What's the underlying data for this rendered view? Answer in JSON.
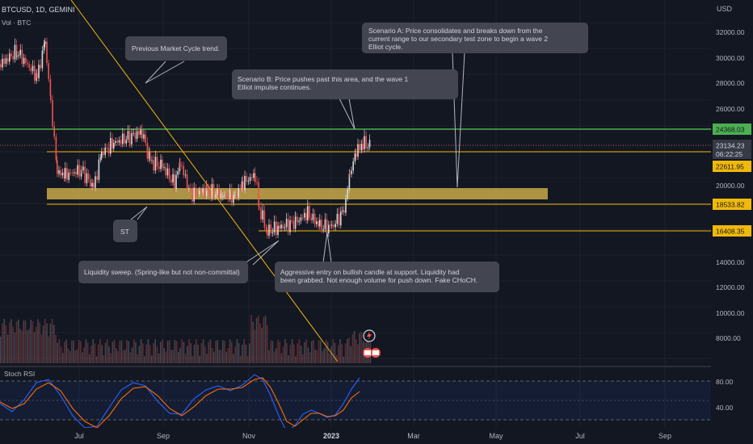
{
  "header": {
    "symbol": "BTCUSD, 1D, GEMINI",
    "volume_label": "Vol · BTC",
    "currency": "USD"
  },
  "colors": {
    "background": "#131722",
    "grid": "#1e222d",
    "candle_up": "#ef5350",
    "candle_dn": "#d9d9d9",
    "green_line": "#4caf50",
    "yellow_line": "#f0b90b",
    "zone": "#c9a94a",
    "dotted": "#c95a5a",
    "stoch_k": "#2962ff",
    "stoch_d": "#ff6d00",
    "tag_yellow": "#f0b90b",
    "tag_green": "#4caf50",
    "tag_price": "#131722",
    "callout": "#434651",
    "callout_text": "#d1d4dc"
  },
  "price_axis": {
    "ticks": [
      "32000.00",
      "30000.00",
      "28000.00",
      "26000.00",
      "20000.00",
      "14000.00",
      "12000.00",
      "10000.00",
      "8000.00"
    ]
  },
  "price_tags": {
    "green": "24368.03",
    "current": "23134.23",
    "countdown": "06:22:25",
    "y1": "22611.95",
    "y2": "18533.82",
    "y3": "16408.35"
  },
  "time_axis": {
    "labels": [
      "Jul",
      "Sep",
      "Nov",
      "2023",
      "Mar",
      "May",
      "Jul",
      "Sep"
    ]
  },
  "stoch": {
    "label": "Stoch RSI",
    "ticks": [
      "80.00",
      "40.00"
    ]
  },
  "annotations": {
    "prev_cycle": "Previous Market Cycle trend.",
    "scenario_a": "Scenario A: Price consolidates and breaks down from the current range to our secondary test zone to begin a wave 2 Elliot cycle.",
    "scenario_b": "Scenario B: Price pushes past this area, and the wave 1 Elliot impulse continues.",
    "st": "ST",
    "liquidity": "Liquidity sweep. (Spring-like but not non-committal)",
    "aggressive": "Aggressive entry on bullish candle at support. Liquidity had been grabbed. Not enough volume for push down. Fake CHoCH."
  },
  "chart_data": {
    "type": "candlestick",
    "symbol": "BTCUSD, 1D, GEMINI",
    "y_axis": {
      "unit": "USD",
      "ticks": [
        32000,
        30000,
        28000,
        26000,
        20000,
        14000,
        12000,
        10000,
        8000
      ]
    },
    "x_axis": {
      "labels": [
        "Jul",
        "Sep",
        "Nov",
        "2023",
        "Mar",
        "May",
        "Jul",
        "Sep"
      ]
    },
    "price_path": [
      {
        "t": "Jun",
        "p": 30000
      },
      {
        "t": "late Jun",
        "p": 20000
      },
      {
        "t": "Jul",
        "p": 21500
      },
      {
        "t": "mid Aug",
        "p": 24200
      },
      {
        "t": "Sep",
        "p": 19800
      },
      {
        "t": "Oct",
        "p": 19300
      },
      {
        "t": "early Nov",
        "p": 20900
      },
      {
        "t": "mid Nov",
        "p": 16300
      },
      {
        "t": "Dec",
        "p": 17000
      },
      {
        "t": "early Jan",
        "p": 16700
      },
      {
        "t": "mid Jan",
        "p": 21000
      },
      {
        "t": "late Jan",
        "p": 23134
      }
    ],
    "levels": [
      {
        "name": "green resistance",
        "value": 24368.03
      },
      {
        "name": "current price",
        "value": 23134.23
      },
      {
        "name": "range high",
        "value": 22611.95
      },
      {
        "name": "range low",
        "value": 18533.82
      },
      {
        "name": "support",
        "value": 16408.35
      }
    ],
    "stoch_rsi": {
      "label": "Stoch RSI",
      "ticks": [
        80,
        40
      ]
    }
  }
}
